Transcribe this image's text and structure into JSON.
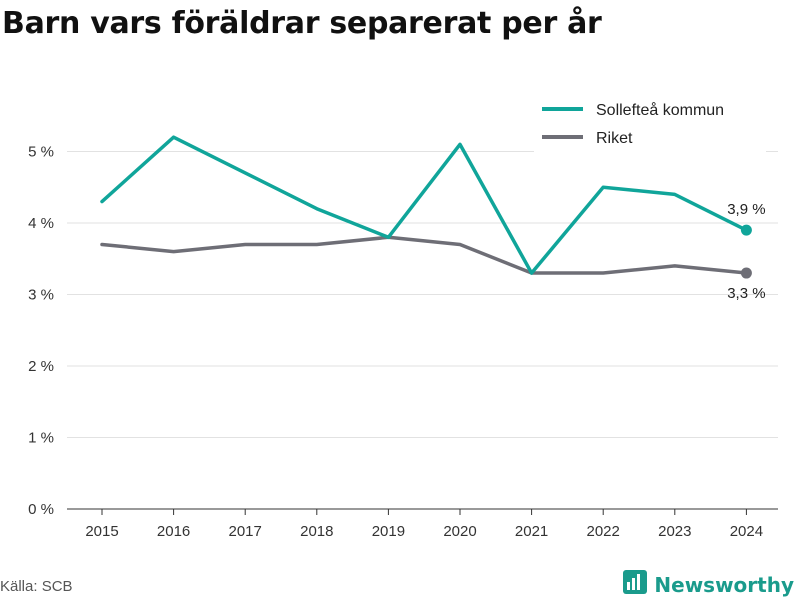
{
  "title": "Barn vars föräldrar separerat per år",
  "source": "Källa: SCB",
  "brand": {
    "name": "Newsworthy",
    "icon": "newsworthy-logo-icon",
    "color": "#1a9b8c"
  },
  "colors": {
    "sollefteå": "#10a59a",
    "riket": "#6e6e76",
    "grid": "#e2e2e2",
    "axis": "#333333"
  },
  "chart_data": {
    "type": "line",
    "x": [
      "2015",
      "2016",
      "2017",
      "2018",
      "2019",
      "2020",
      "2021",
      "2022",
      "2023",
      "2024"
    ],
    "ylim": [
      0,
      5.5
    ],
    "yticks": [
      0,
      1,
      2,
      3,
      4,
      5
    ],
    "ytick_labels": [
      "0 %",
      "1 %",
      "2 %",
      "3 %",
      "4 %",
      "5 %"
    ],
    "grid": true,
    "legend": "top-right",
    "series": [
      {
        "name": "Sollefteå kommun",
        "color": "#10a59a",
        "values": [
          4.3,
          5.2,
          4.7,
          4.2,
          3.8,
          5.1,
          3.3,
          4.5,
          4.4,
          3.9
        ],
        "end_label": "3,9 %"
      },
      {
        "name": "Riket",
        "color": "#6e6e76",
        "values": [
          3.7,
          3.6,
          3.7,
          3.7,
          3.8,
          3.7,
          3.3,
          3.3,
          3.4,
          3.3
        ],
        "end_label": "3,3 %"
      }
    ]
  }
}
